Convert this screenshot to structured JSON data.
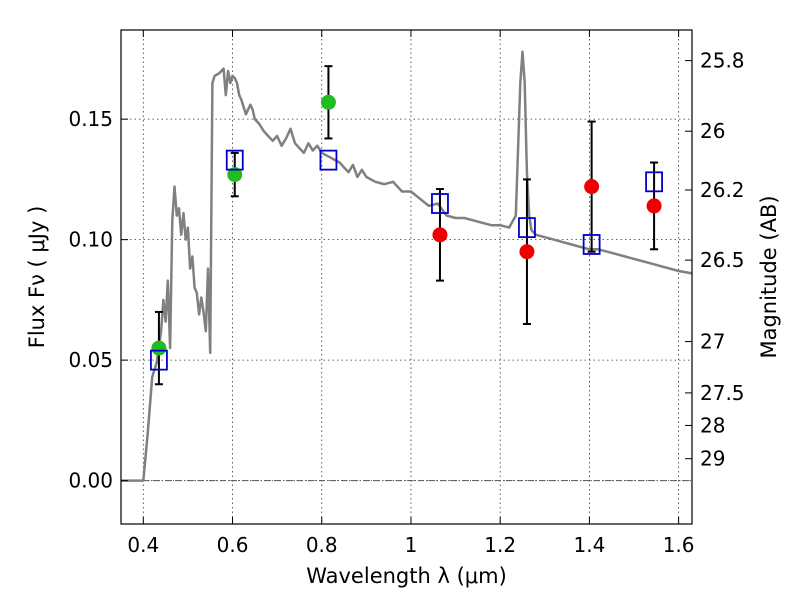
{
  "chart_data": {
    "type": "scatter",
    "title": "",
    "xlabel": "Wavelength  λ (μm)",
    "ylabel": "Flux  Fν  ( μJy )",
    "y2label": "Magnitude (AB)",
    "xlim": [
      0.35,
      1.63
    ],
    "ylim": [
      -0.018,
      0.187
    ],
    "grid": true,
    "x_ticks": [
      0.4,
      0.6,
      0.8,
      1.0,
      1.2,
      1.4,
      1.6
    ],
    "x_tick_labels": [
      "0.4",
      "0.6",
      "0.8",
      "1",
      "1.2",
      "1.4",
      "1.6"
    ],
    "y_ticks": [
      0.0,
      0.05,
      0.1,
      0.15
    ],
    "y_tick_labels": [
      "0.00",
      "0.05",
      "0.10",
      "0.15"
    ],
    "y2_ticks": [
      {
        "label": "25.8",
        "flux": 0.1743
      },
      {
        "label": "26",
        "flux": 0.145
      },
      {
        "label": "26.2",
        "flux": 0.1206
      },
      {
        "label": "26.5",
        "flux": 0.0915
      },
      {
        "label": "27",
        "flux": 0.0577
      },
      {
        "label": "27.5",
        "flux": 0.0364
      },
      {
        "label": "28",
        "flux": 0.0229
      },
      {
        "label": "29",
        "flux": 0.0091
      }
    ],
    "series": [
      {
        "type": "line",
        "color": "#808080",
        "x": [
          0.35,
          0.4,
          0.41,
          0.42,
          0.43,
          0.44,
          0.445,
          0.45,
          0.455,
          0.46,
          0.465,
          0.47,
          0.475,
          0.48,
          0.485,
          0.49,
          0.495,
          0.5,
          0.505,
          0.51,
          0.515,
          0.52,
          0.525,
          0.53,
          0.535,
          0.54,
          0.545,
          0.55,
          0.555,
          0.56,
          0.57,
          0.58,
          0.585,
          0.59,
          0.595,
          0.6,
          0.605,
          0.61,
          0.615,
          0.62,
          0.63,
          0.64,
          0.645,
          0.65,
          0.66,
          0.67,
          0.68,
          0.69,
          0.7,
          0.71,
          0.72,
          0.73,
          0.74,
          0.75,
          0.76,
          0.77,
          0.78,
          0.79,
          0.8,
          0.81,
          0.82,
          0.83,
          0.84,
          0.85,
          0.86,
          0.87,
          0.88,
          0.89,
          0.9,
          0.92,
          0.94,
          0.96,
          0.98,
          1.0,
          1.02,
          1.04,
          1.06,
          1.08,
          1.1,
          1.12,
          1.14,
          1.16,
          1.18,
          1.2,
          1.22,
          1.235,
          1.245,
          1.25,
          1.255,
          1.26,
          1.265,
          1.27,
          1.275,
          1.28,
          1.3,
          1.32,
          1.34,
          1.36,
          1.38,
          1.4,
          1.42,
          1.44,
          1.46,
          1.48,
          1.5,
          1.52,
          1.54,
          1.56,
          1.58,
          1.6,
          1.63
        ],
        "y": [
          0.0,
          0.0,
          0.02,
          0.043,
          0.049,
          0.062,
          0.075,
          0.066,
          0.083,
          0.055,
          0.108,
          0.122,
          0.11,
          0.113,
          0.102,
          0.111,
          0.1,
          0.105,
          0.088,
          0.093,
          0.08,
          0.078,
          0.069,
          0.076,
          0.07,
          0.062,
          0.088,
          0.053,
          0.165,
          0.168,
          0.169,
          0.171,
          0.16,
          0.17,
          0.165,
          0.168,
          0.167,
          0.165,
          0.16,
          0.158,
          0.152,
          0.156,
          0.154,
          0.15,
          0.148,
          0.145,
          0.143,
          0.141,
          0.143,
          0.139,
          0.142,
          0.146,
          0.14,
          0.138,
          0.136,
          0.14,
          0.137,
          0.139,
          0.136,
          0.135,
          0.134,
          0.133,
          0.132,
          0.13,
          0.128,
          0.131,
          0.126,
          0.129,
          0.126,
          0.124,
          0.123,
          0.124,
          0.12,
          0.12,
          0.117,
          0.114,
          0.115,
          0.11,
          0.109,
          0.109,
          0.108,
          0.107,
          0.106,
          0.106,
          0.105,
          0.11,
          0.165,
          0.178,
          0.165,
          0.128,
          0.11,
          0.104,
          0.103,
          0.102,
          0.101,
          0.1,
          0.099,
          0.098,
          0.097,
          0.096,
          0.096,
          0.095,
          0.094,
          0.093,
          0.092,
          0.091,
          0.09,
          0.089,
          0.088,
          0.087,
          0.086
        ]
      },
      {
        "type": "points",
        "marker": "circle",
        "color": "#22bb22",
        "x": [
          0.435,
          0.605,
          0.815
        ],
        "y": [
          0.055,
          0.127,
          0.157
        ],
        "yerr": [
          0.015,
          0.009,
          0.015
        ]
      },
      {
        "type": "points",
        "marker": "circle",
        "color": "#ee0000",
        "x": [
          1.065,
          1.26,
          1.405,
          1.545
        ],
        "y": [
          0.102,
          0.095,
          0.122,
          0.114
        ],
        "yerr": [
          0.019,
          0.03,
          0.027,
          0.018
        ]
      },
      {
        "type": "points",
        "marker": "square",
        "color": "#0000cc",
        "x": [
          0.435,
          0.605,
          0.815,
          1.065,
          1.26,
          1.405,
          1.545
        ],
        "y": [
          0.05,
          0.133,
          0.133,
          0.115,
          0.105,
          0.098,
          0.124
        ]
      }
    ]
  }
}
